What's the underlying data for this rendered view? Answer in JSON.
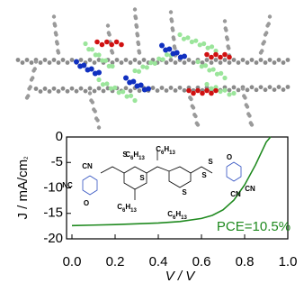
{
  "chart_data": {
    "type": "line",
    "x": [
      0,
      0.1,
      0.2,
      0.3,
      0.4,
      0.5,
      0.6,
      0.65,
      0.7,
      0.75,
      0.8,
      0.85,
      0.9,
      0.92
    ],
    "series": [
      {
        "name": null,
        "color": "#1f8a1f",
        "values": [
          -17.4,
          -17.3,
          -17.2,
          -17.05,
          -16.9,
          -16.6,
          -16.0,
          -15.4,
          -14.3,
          -12.4,
          -9.4,
          -5.5,
          -1.0,
          0
        ]
      }
    ],
    "xlim": [
      0,
      1
    ],
    "ylim": [
      -20,
      0
    ],
    "xticks": [
      {
        "value": 0,
        "label": "0.0"
      },
      {
        "value": 0.2,
        "label": "0.2"
      },
      {
        "value": 0.4,
        "label": "0.4"
      },
      {
        "value": 0.6,
        "label": "0.6"
      },
      {
        "value": 0.8,
        "label": "0.8"
      },
      {
        "value": 1,
        "label": "1.0"
      }
    ],
    "yticks": [
      0,
      -5,
      -10,
      -15,
      -20
    ],
    "xlabel": "V / V",
    "ylabel": "J / mA/cm2",
    "annotation": "PCE=10.5%",
    "structure_labels": [
      "NC",
      "CN",
      "O",
      "S",
      "S",
      "S",
      "S",
      "C6H13",
      "C6H13",
      "C6H13",
      "C6H13",
      "O",
      "CN",
      "CN",
      "S"
    ]
  }
}
